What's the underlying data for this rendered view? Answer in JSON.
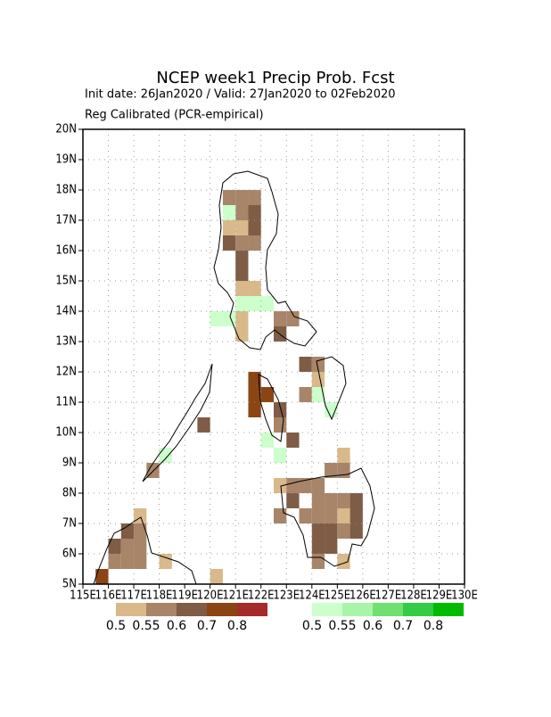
{
  "title": "NCEP week1 Precip Prob. Fcst",
  "subtitle_1": "Init date: 26Jan2020 / Valid: 27Jan2020 to 02Feb2020",
  "subtitle_2": "Reg Calibrated (PCR-empirical)",
  "map": {
    "xlim": [
      115,
      130
    ],
    "ylim": [
      5,
      20
    ],
    "lon_ticks": [
      {
        "value": 115,
        "label": "115E"
      },
      {
        "value": 116,
        "label": "116E"
      },
      {
        "value": 117,
        "label": "117E"
      },
      {
        "value": 118,
        "label": "118E"
      },
      {
        "value": 119,
        "label": "119E"
      },
      {
        "value": 120,
        "label": "120E"
      },
      {
        "value": 121,
        "label": "121E"
      },
      {
        "value": 122,
        "label": "122E"
      },
      {
        "value": 123,
        "label": "123E"
      },
      {
        "value": 124,
        "label": "124E"
      },
      {
        "value": 125,
        "label": "125E"
      },
      {
        "value": 126,
        "label": "126E"
      },
      {
        "value": 127,
        "label": "127E"
      },
      {
        "value": 128,
        "label": "128E"
      },
      {
        "value": 129,
        "label": "129E"
      },
      {
        "value": 130,
        "label": "130E"
      }
    ],
    "lat_ticks": [
      {
        "value": 5,
        "label": "5N"
      },
      {
        "value": 6,
        "label": "6N"
      },
      {
        "value": 7,
        "label": "7N"
      },
      {
        "value": 8,
        "label": "8N"
      },
      {
        "value": 9,
        "label": "9N"
      },
      {
        "value": 10,
        "label": "10N"
      },
      {
        "value": 11,
        "label": "11N"
      },
      {
        "value": 12,
        "label": "12N"
      },
      {
        "value": 13,
        "label": "13N"
      },
      {
        "value": 14,
        "label": "14N"
      },
      {
        "value": 15,
        "label": "15N"
      },
      {
        "value": 16,
        "label": "16N"
      },
      {
        "value": 17,
        "label": "17N"
      },
      {
        "value": 18,
        "label": "18N"
      },
      {
        "value": 19,
        "label": "19N"
      },
      {
        "value": 20,
        "label": "20N"
      }
    ],
    "grid": true,
    "cells_below": [
      [
        120.5,
        17.5,
        1
      ],
      [
        121,
        17.5,
        1
      ],
      [
        121.5,
        17.5,
        1
      ],
      [
        121,
        17,
        1
      ],
      [
        121.5,
        17,
        2
      ],
      [
        120.5,
        16.5,
        0
      ],
      [
        121,
        16.5,
        0
      ],
      [
        121.5,
        16.5,
        2
      ],
      [
        120.5,
        16,
        2
      ],
      [
        121,
        16,
        1
      ],
      [
        121.5,
        16,
        1
      ],
      [
        121,
        15.5,
        2
      ],
      [
        121,
        15,
        2
      ],
      [
        121,
        14.5,
        0
      ],
      [
        121.5,
        14.5,
        0
      ],
      [
        121,
        13.5,
        0
      ],
      [
        121,
        13,
        0
      ],
      [
        122.5,
        13.5,
        1
      ],
      [
        123,
        13.5,
        1
      ],
      [
        122.5,
        13,
        2
      ],
      [
        121.5,
        11,
        3
      ],
      [
        121.5,
        11.5,
        3
      ],
      [
        122,
        11,
        3
      ],
      [
        121.5,
        10.5,
        3
      ],
      [
        122.5,
        10.5,
        2
      ],
      [
        122.5,
        10,
        1
      ],
      [
        123.5,
        12,
        2
      ],
      [
        124,
        12,
        1
      ],
      [
        124,
        11.5,
        0
      ],
      [
        123.5,
        11,
        1
      ],
      [
        123,
        9.5,
        2
      ],
      [
        119.5,
        10,
        2
      ],
      [
        117.5,
        8.5,
        1
      ],
      [
        122.5,
        8,
        0
      ],
      [
        123,
        8,
        1
      ],
      [
        123.5,
        8,
        1
      ],
      [
        124,
        8,
        1
      ],
      [
        124.5,
        8.5,
        1
      ],
      [
        125,
        8.5,
        1
      ],
      [
        125,
        9,
        0
      ],
      [
        122.5,
        7,
        1
      ],
      [
        123,
        7.5,
        2
      ],
      [
        123.5,
        7,
        1
      ],
      [
        124,
        7.5,
        1
      ],
      [
        124.5,
        7.5,
        1
      ],
      [
        125,
        7.5,
        1
      ],
      [
        125.5,
        7.5,
        2
      ],
      [
        124,
        7,
        1
      ],
      [
        124.5,
        7,
        1
      ],
      [
        125,
        7,
        0
      ],
      [
        125.5,
        7,
        2
      ],
      [
        124,
        6.5,
        2
      ],
      [
        124.5,
        6.5,
        2
      ],
      [
        125,
        6.5,
        1
      ],
      [
        125.5,
        6.5,
        2
      ],
      [
        124,
        6,
        2
      ],
      [
        124.5,
        6,
        2
      ],
      [
        124,
        5.5,
        1
      ],
      [
        125,
        5.5,
        0
      ],
      [
        116,
        6,
        2
      ],
      [
        116.5,
        6,
        1
      ],
      [
        116.5,
        6.5,
        2
      ],
      [
        117,
        6.5,
        1
      ],
      [
        117,
        7,
        0
      ],
      [
        116,
        5.5,
        1
      ],
      [
        116.5,
        5.5,
        1
      ],
      [
        117,
        5.5,
        1
      ],
      [
        117,
        6,
        1
      ],
      [
        115.5,
        5,
        3
      ],
      [
        118,
        5.5,
        0
      ],
      [
        120,
        5,
        0
      ]
    ],
    "cells_above": [
      [
        120.5,
        17,
        0
      ],
      [
        121,
        14,
        0
      ],
      [
        121.5,
        14,
        0
      ],
      [
        122,
        14,
        0
      ],
      [
        120.5,
        13.5,
        0
      ],
      [
        120,
        13.5,
        0
      ],
      [
        122,
        9.5,
        0
      ],
      [
        122.5,
        9,
        0
      ],
      [
        124,
        11,
        0
      ],
      [
        124.5,
        10.5,
        0
      ],
      [
        118,
        9,
        0
      ]
    ]
  },
  "legend": {
    "below_colors": [
      "#d9b98a",
      "#a88468",
      "#7e5c45",
      "#8b4513",
      "#a52a2a"
    ],
    "above_colors": [
      "#ccffcc",
      "#a8f5a8",
      "#70e070",
      "#33cc44",
      "#00bb00"
    ],
    "labels": [
      0.5,
      0.55,
      0.6,
      0.7,
      0.8
    ]
  }
}
